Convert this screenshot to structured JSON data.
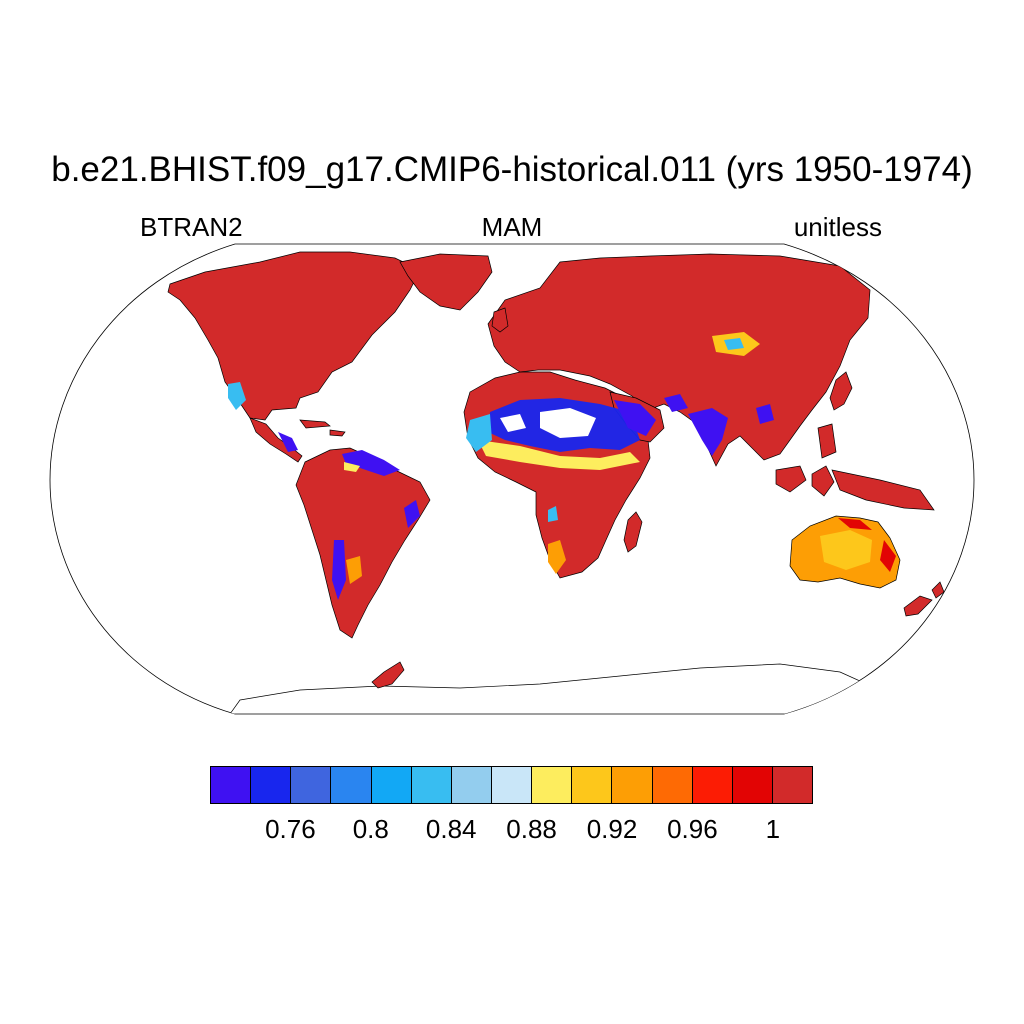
{
  "title": "b.e21.BHIST.f09_g17.CMIP6-historical.011 (yrs 1950-1974)",
  "left_label": "BTRAN2",
  "center_label": "MAM",
  "right_label": "unitless",
  "legend": {
    "colors": [
      "#3f11f2",
      "#1826ee",
      "#3f65df",
      "#2a85f0",
      "#12a8f5",
      "#38bdf1",
      "#93cdee",
      "#c9e6f8",
      "#fded5e",
      "#fdc71b",
      "#fd9e05",
      "#fe6a04",
      "#fc1c04",
      "#e20404",
      "#d22a2a"
    ],
    "tick_labels": [
      "0.76",
      "0.8",
      "0.84",
      "0.88",
      "0.92",
      "0.96",
      "1"
    ]
  },
  "map": {
    "projection": "Robinson",
    "ocean_color": "#ffffff",
    "land_default_color": "#d22a2a",
    "coastline_color": "#000000"
  }
}
